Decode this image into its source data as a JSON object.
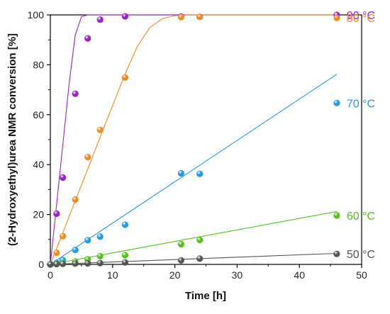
{
  "chart_data": {
    "type": "scatter",
    "xlabel": "Time [h]",
    "ylabel": "(2-Hydroxyethyl)urea NMR conversion [%]",
    "xlim": [
      0,
      50
    ],
    "ylim": [
      0,
      100
    ],
    "xticks": [
      0,
      10,
      20,
      30,
      40,
      50
    ],
    "yticks": [
      0,
      20,
      40,
      60,
      80,
      100
    ],
    "grid": false,
    "series": [
      {
        "name": "90 °C",
        "color": "#9b1fcf",
        "points": [
          [
            0,
            0
          ],
          [
            1,
            20.3
          ],
          [
            2,
            34.8
          ],
          [
            4,
            68.4
          ],
          [
            6,
            90.6
          ],
          [
            8,
            98.1
          ],
          [
            12,
            99.4
          ],
          [
            21,
            99.3
          ],
          [
            24,
            99.2
          ],
          [
            46,
            100
          ]
        ],
        "fit": [
          [
            0,
            0
          ],
          [
            1,
            24
          ],
          [
            2,
            48
          ],
          [
            3,
            72
          ],
          [
            4,
            92
          ],
          [
            5,
            99.3
          ],
          [
            6,
            100
          ],
          [
            46,
            100
          ]
        ]
      },
      {
        "name": "80 °C",
        "color": "#f28a1e",
        "points": [
          [
            0,
            0
          ],
          [
            1,
            4.7
          ],
          [
            2,
            11.3
          ],
          [
            4,
            26.0
          ],
          [
            6,
            43.0
          ],
          [
            8,
            53.9
          ],
          [
            12,
            74.9
          ],
          [
            21,
            99.1
          ],
          [
            24,
            99.2
          ],
          [
            46,
            98.8
          ]
        ],
        "fit": [
          [
            0,
            0
          ],
          [
            2,
            12.7
          ],
          [
            4,
            25.5
          ],
          [
            6,
            38.2
          ],
          [
            8,
            51
          ],
          [
            10,
            63.7
          ],
          [
            12,
            76.3
          ],
          [
            14,
            87.5
          ],
          [
            16,
            95
          ],
          [
            18,
            98.5
          ],
          [
            20,
            99.7
          ],
          [
            22,
            100
          ],
          [
            46,
            100
          ]
        ]
      },
      {
        "name": "70 °C",
        "color": "#1f9be8",
        "points": [
          [
            0,
            0
          ],
          [
            1,
            0.6
          ],
          [
            2,
            1.7
          ],
          [
            4,
            5.8
          ],
          [
            6,
            9.7
          ],
          [
            8,
            11.1
          ],
          [
            12,
            15.9
          ],
          [
            21,
            36.5
          ],
          [
            24,
            36.3
          ],
          [
            46,
            64.7
          ]
        ],
        "fit": [
          [
            0,
            0
          ],
          [
            46,
            76.2
          ]
        ]
      },
      {
        "name": "60 °C",
        "color": "#52c21a",
        "points": [
          [
            0,
            0
          ],
          [
            1,
            0.3
          ],
          [
            2,
            0.6
          ],
          [
            4,
            1.2
          ],
          [
            6,
            2.0
          ],
          [
            8,
            3.3
          ],
          [
            12,
            3.7
          ],
          [
            21,
            8.1
          ],
          [
            24,
            9.8
          ],
          [
            46,
            19.6
          ]
        ],
        "fit": [
          [
            0,
            0
          ],
          [
            46,
            21.2
          ]
        ]
      },
      {
        "name": "50 °C",
        "color": "#555555",
        "points": [
          [
            0,
            0
          ],
          [
            1,
            0.1
          ],
          [
            2,
            0.2
          ],
          [
            4,
            0.3
          ],
          [
            6,
            0.4
          ],
          [
            8,
            0.5
          ],
          [
            12,
            0.8
          ],
          [
            21,
            1.6
          ],
          [
            24,
            2.3
          ],
          [
            46,
            4.2
          ]
        ],
        "fit": [
          [
            0,
            0
          ],
          [
            46,
            4.4
          ]
        ]
      }
    ]
  }
}
